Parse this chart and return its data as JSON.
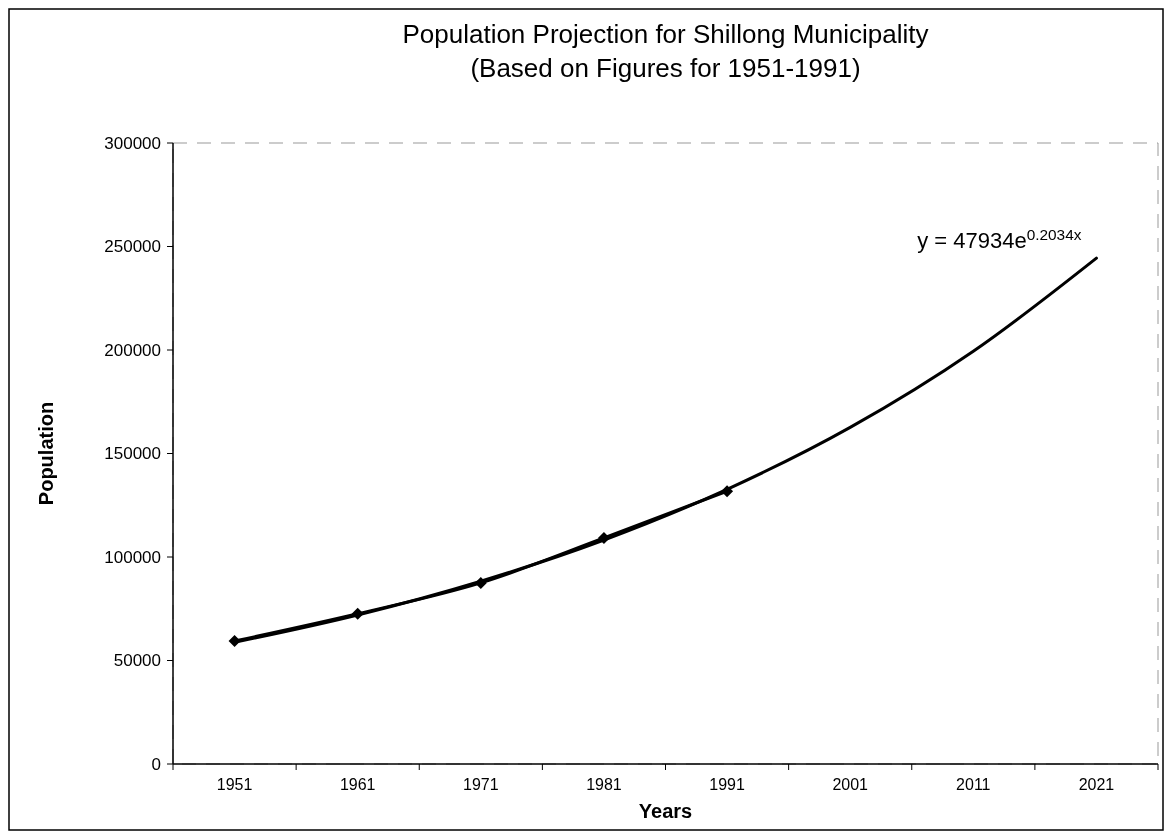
{
  "chart_data": {
    "type": "line",
    "title": "Population Projection for Shillong Municipality\n(Based on Figures for 1951-1991)",
    "xlabel": "Years",
    "ylabel": "Population",
    "categories": [
      "1951",
      "1961",
      "1971",
      "1981",
      "1991",
      "2001",
      "2011",
      "2021"
    ],
    "series": [
      {
        "color": "#000000",
        "marker": "diamond",
        "values": [
          59400,
          72600,
          87500,
          109200,
          131800,
          null,
          null,
          null
        ]
      },
      {
        "type": "line",
        "color": "#000000",
        "marker": "none",
        "values": [
          58800,
          72000,
          88300,
          108200,
          132700,
          162600,
          199400,
          244400
        ]
      }
    ],
    "annotations": [
      {
        "text": "y = 47934e$^{0.2034x}$",
        "x": "2021",
        "y": 244400
      }
    ],
    "ylim": [
      0,
      300000
    ],
    "yticks": [
      0,
      50000,
      100000,
      150000,
      200000,
      250000,
      300000
    ],
    "grid": false
  }
}
